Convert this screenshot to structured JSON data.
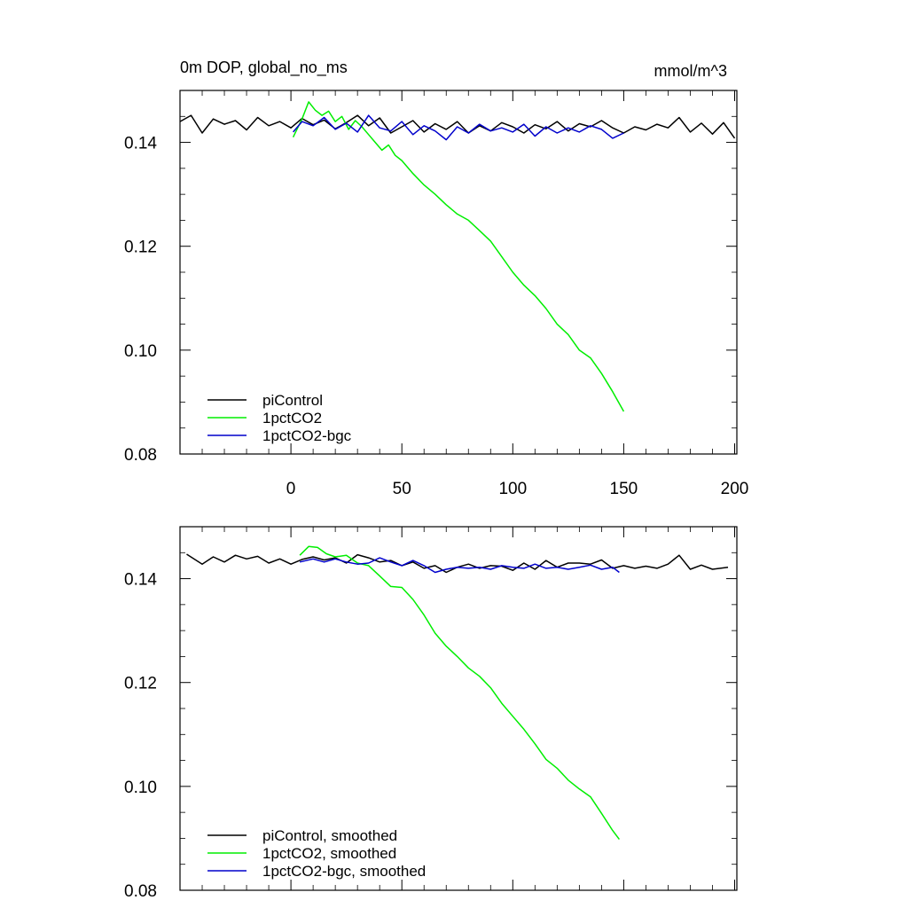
{
  "chart_data": [
    {
      "type": "line",
      "title": "0m DOP, global_no_ms",
      "units": "mmol/m^3",
      "xlabel": "",
      "ylabel": "",
      "xlim": [
        -50,
        201
      ],
      "ylim": [
        0.08,
        0.15
      ],
      "x_ticks": [
        0,
        50,
        100,
        150,
        200
      ],
      "x_tick_labels": [
        "0",
        "50",
        "100",
        "150",
        "200"
      ],
      "y_ticks": [
        0.08,
        0.1,
        0.12,
        0.14
      ],
      "y_tick_labels": [
        "0.08",
        "0.10",
        "0.12",
        "0.14"
      ],
      "legend_position": "bottom-left",
      "series": [
        {
          "name": "piControl",
          "color": "#000000",
          "x": [
            -50,
            -45,
            -40,
            -35,
            -30,
            -25,
            -20,
            -15,
            -10,
            -5,
            0,
            5,
            10,
            15,
            20,
            25,
            30,
            35,
            40,
            45,
            50,
            55,
            60,
            65,
            70,
            75,
            80,
            85,
            90,
            95,
            100,
            105,
            110,
            115,
            120,
            125,
            130,
            135,
            140,
            145,
            150,
            155,
            160,
            165,
            170,
            175,
            180,
            185,
            190,
            195,
            200
          ],
          "values": [
            0.144,
            0.1452,
            0.1418,
            0.1445,
            0.1435,
            0.1442,
            0.1424,
            0.1448,
            0.1432,
            0.144,
            0.1428,
            0.1446,
            0.1434,
            0.1443,
            0.1426,
            0.1438,
            0.1452,
            0.1432,
            0.1447,
            0.1418,
            0.143,
            0.1442,
            0.142,
            0.1436,
            0.1425,
            0.144,
            0.1418,
            0.1432,
            0.1422,
            0.1438,
            0.143,
            0.1418,
            0.1434,
            0.1426,
            0.144,
            0.1422,
            0.1436,
            0.143,
            0.1442,
            0.1428,
            0.1418,
            0.143,
            0.1424,
            0.1435,
            0.1428,
            0.1448,
            0.142,
            0.1437,
            0.1416,
            0.1438,
            0.1408
          ]
        },
        {
          "name": "1pctCO2",
          "color": "#00ee00",
          "x": [
            1,
            5,
            8,
            11,
            14,
            17,
            20,
            23,
            26,
            29,
            32,
            35,
            38,
            41,
            44,
            47,
            50,
            55,
            60,
            65,
            70,
            75,
            80,
            85,
            90,
            95,
            100,
            105,
            110,
            115,
            120,
            125,
            130,
            135,
            140,
            145,
            150
          ],
          "values": [
            0.141,
            0.1445,
            0.1478,
            0.1462,
            0.1452,
            0.146,
            0.144,
            0.145,
            0.1425,
            0.1442,
            0.143,
            0.1415,
            0.14,
            0.1385,
            0.1395,
            0.1375,
            0.1365,
            0.134,
            0.1318,
            0.13,
            0.128,
            0.1262,
            0.125,
            0.123,
            0.121,
            0.118,
            0.115,
            0.1125,
            0.1105,
            0.108,
            0.105,
            0.103,
            0.1,
            0.0985,
            0.0955,
            0.092,
            0.0882
          ]
        },
        {
          "name": "1pctCO2-bgc",
          "color": "#0000cc",
          "x": [
            1,
            5,
            10,
            15,
            20,
            25,
            30,
            35,
            40,
            45,
            50,
            55,
            60,
            65,
            70,
            75,
            80,
            85,
            90,
            95,
            100,
            105,
            110,
            115,
            120,
            125,
            130,
            135,
            140,
            145,
            150
          ],
          "values": [
            0.142,
            0.144,
            0.1432,
            0.1448,
            0.1425,
            0.1437,
            0.142,
            0.1452,
            0.1428,
            0.1422,
            0.144,
            0.1415,
            0.1432,
            0.1422,
            0.1405,
            0.143,
            0.1418,
            0.1435,
            0.1422,
            0.1428,
            0.142,
            0.1435,
            0.1412,
            0.143,
            0.1418,
            0.1428,
            0.142,
            0.1432,
            0.1425,
            0.1408,
            0.1418
          ]
        }
      ]
    },
    {
      "type": "line",
      "title": "",
      "xlabel": "",
      "ylabel": "",
      "xlim": [
        -50,
        201
      ],
      "ylim": [
        0.08,
        0.15
      ],
      "x_ticks": [
        0,
        50,
        100,
        150,
        200
      ],
      "x_tick_labels": [],
      "y_ticks": [
        0.08,
        0.1,
        0.12,
        0.14
      ],
      "y_tick_labels": [
        "0.08",
        "0.10",
        "0.12",
        "0.14"
      ],
      "legend_position": "bottom-left",
      "series": [
        {
          "name": "piControl, smoothed",
          "color": "#000000",
          "x": [
            -47,
            -40,
            -35,
            -30,
            -25,
            -20,
            -15,
            -10,
            -5,
            0,
            5,
            10,
            15,
            20,
            25,
            30,
            35,
            40,
            45,
            50,
            55,
            60,
            65,
            70,
            75,
            80,
            85,
            90,
            95,
            100,
            105,
            110,
            115,
            120,
            125,
            130,
            135,
            140,
            145,
            150,
            155,
            160,
            165,
            170,
            175,
            180,
            185,
            190,
            197
          ],
          "values": [
            0.1447,
            0.1428,
            0.1442,
            0.1432,
            0.1445,
            0.1438,
            0.1443,
            0.143,
            0.1438,
            0.1428,
            0.1437,
            0.1442,
            0.1436,
            0.144,
            0.143,
            0.1446,
            0.144,
            0.1432,
            0.1435,
            0.1425,
            0.1432,
            0.142,
            0.1425,
            0.1412,
            0.1422,
            0.1428,
            0.142,
            0.1425,
            0.1424,
            0.1416,
            0.143,
            0.1418,
            0.1435,
            0.1422,
            0.143,
            0.143,
            0.1428,
            0.1436,
            0.142,
            0.1425,
            0.142,
            0.1424,
            0.142,
            0.1428,
            0.1445,
            0.1418,
            0.1426,
            0.1418,
            0.1422
          ]
        },
        {
          "name": "1pctCO2, smoothed",
          "color": "#00ee00",
          "x": [
            4,
            8,
            12,
            16,
            20,
            25,
            30,
            35,
            40,
            45,
            50,
            55,
            60,
            65,
            70,
            75,
            80,
            85,
            90,
            95,
            100,
            105,
            110,
            115,
            120,
            125,
            130,
            135,
            140,
            145,
            148
          ],
          "values": [
            0.1445,
            0.1462,
            0.146,
            0.1448,
            0.1442,
            0.1445,
            0.143,
            0.1425,
            0.1405,
            0.1385,
            0.1383,
            0.136,
            0.133,
            0.1295,
            0.127,
            0.125,
            0.1228,
            0.1212,
            0.119,
            0.116,
            0.1135,
            0.111,
            0.1082,
            0.1052,
            0.1035,
            0.1012,
            0.0995,
            0.098,
            0.0948,
            0.0915,
            0.0898
          ]
        },
        {
          "name": "1pctCO2-bgc, smoothed",
          "color": "#0000cc",
          "x": [
            4,
            10,
            15,
            20,
            25,
            30,
            35,
            40,
            45,
            50,
            55,
            60,
            65,
            70,
            75,
            80,
            85,
            90,
            95,
            100,
            105,
            110,
            115,
            120,
            125,
            130,
            135,
            140,
            145,
            148
          ],
          "values": [
            0.1432,
            0.1438,
            0.1432,
            0.1438,
            0.1432,
            0.1428,
            0.143,
            0.144,
            0.1432,
            0.1425,
            0.1435,
            0.1425,
            0.1412,
            0.1418,
            0.1422,
            0.142,
            0.1422,
            0.1418,
            0.1425,
            0.1422,
            0.142,
            0.1428,
            0.142,
            0.1422,
            0.1418,
            0.1422,
            0.1426,
            0.1418,
            0.1422,
            0.1412
          ]
        }
      ]
    }
  ]
}
